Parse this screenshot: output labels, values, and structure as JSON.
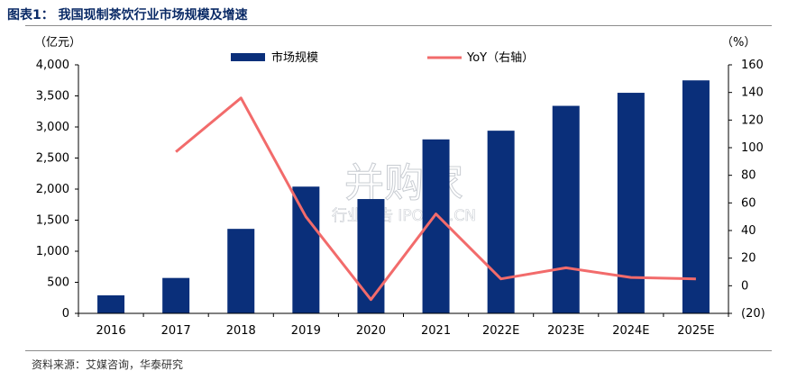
{
  "figure": {
    "title": "图表1： 我国现制茶饮行业市场规模及增速",
    "source": "资料来源：艾媒咨询，华泰研究",
    "watermark": {
      "main": "并购家",
      "sub": "行业报告 IPOIPO.CN"
    }
  },
  "chart_data": {
    "type": "bar",
    "categories": [
      "2016",
      "2017",
      "2018",
      "2019",
      "2020",
      "2021",
      "2022E",
      "2023E",
      "2024E",
      "2025E"
    ],
    "series": [
      {
        "name": "市场规模",
        "type": "bar",
        "axis": "left",
        "color": "#0a2f7a",
        "values": [
          290,
          570,
          1360,
          2040,
          1840,
          2800,
          2940,
          3340,
          3550,
          3750
        ]
      },
      {
        "name": "YoY（右轴）",
        "type": "line",
        "axis": "right",
        "color": "#f26b6b",
        "values": [
          null,
          97,
          136,
          50,
          -10,
          52,
          5,
          13,
          6,
          5
        ]
      }
    ],
    "left_axis": {
      "unit": "（亿元）",
      "ylim": [
        0,
        4000
      ],
      "ticks": [
        0,
        500,
        1000,
        1500,
        2000,
        2500,
        3000,
        3500,
        4000
      ],
      "tick_labels": [
        "0",
        "500",
        "1,000",
        "1,500",
        "2,000",
        "2,500",
        "3,000",
        "3,500",
        "4,000"
      ]
    },
    "right_axis": {
      "unit": "（%）",
      "ylim": [
        -20,
        160
      ],
      "ticks": [
        -20,
        0,
        20,
        40,
        60,
        80,
        100,
        120,
        140,
        160
      ],
      "tick_labels": [
        "(20)",
        "0",
        "20",
        "40",
        "60",
        "80",
        "100",
        "120",
        "140",
        "160"
      ]
    },
    "legend_position": "top",
    "grid": false
  }
}
